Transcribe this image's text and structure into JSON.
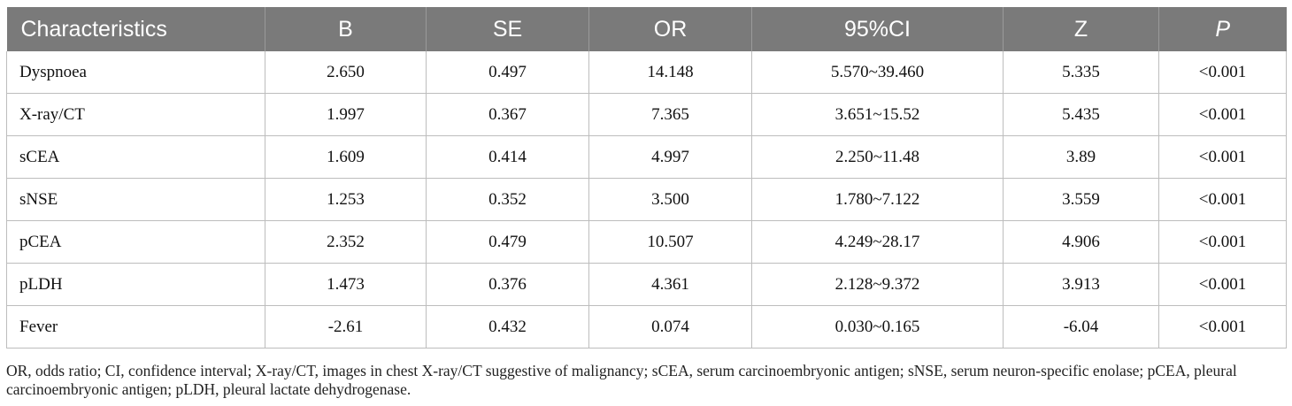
{
  "table": {
    "headers": [
      "Characteristics",
      "B",
      "SE",
      "OR",
      "95%CI",
      "Z",
      "P"
    ],
    "rows": [
      [
        "Dyspnoea",
        "2.650",
        "0.497",
        "14.148",
        "5.570~39.460",
        "5.335",
        "<0.001"
      ],
      [
        "X-ray/CT",
        "1.997",
        "0.367",
        "7.365",
        "3.651~15.52",
        "5.435",
        "<0.001"
      ],
      [
        "sCEA",
        "1.609",
        "0.414",
        "4.997",
        "2.250~11.48",
        "3.89",
        "<0.001"
      ],
      [
        "sNSE",
        "1.253",
        "0.352",
        "3.500",
        "1.780~7.122",
        "3.559",
        "<0.001"
      ],
      [
        "pCEA",
        "2.352",
        "0.479",
        "10.507",
        "4.249~28.17",
        "4.906",
        "<0.001"
      ],
      [
        "pLDH",
        "1.473",
        "0.376",
        "4.361",
        "2.128~9.372",
        "3.913",
        "<0.001"
      ],
      [
        "Fever",
        "-2.61",
        "0.432",
        "0.074",
        "0.030~0.165",
        "-6.04",
        "<0.001"
      ]
    ]
  },
  "footnote": "OR, odds ratio; CI, confidence interval; X-ray/CT, images in chest X-ray/CT suggestive of malignancy; sCEA, serum carcinoembryonic antigen; sNSE, serum neuron-specific enolase; pCEA, pleural carcinoembryonic antigen; pLDH, pleural lactate dehydrogenase.",
  "colors": {
    "header_bg": "#7a7a7a",
    "header_text": "#ffffff",
    "rule": "#bdbdbd"
  }
}
